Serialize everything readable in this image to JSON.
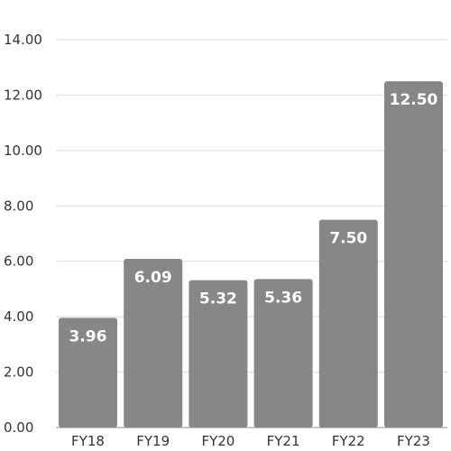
{
  "chart_data": {
    "type": "bar",
    "categories": [
      "FY18",
      "FY19",
      "FY20",
      "FY21",
      "FY22",
      "FY23"
    ],
    "values": [
      3.96,
      6.09,
      5.32,
      5.36,
      7.5,
      12.5
    ],
    "value_labels": [
      "3.96",
      "6.09",
      "5.32",
      "5.36",
      "7.50",
      "12.50"
    ],
    "yticks": [
      "0.00",
      "2.00",
      "4.00",
      "6.00",
      "8.00",
      "10.00",
      "12.00",
      "14.00"
    ],
    "ylim": [
      0,
      14
    ],
    "grid": true,
    "bar_color": "#878787",
    "grid_color": "#d9d9d9",
    "value_label_color": "#ffffff"
  }
}
